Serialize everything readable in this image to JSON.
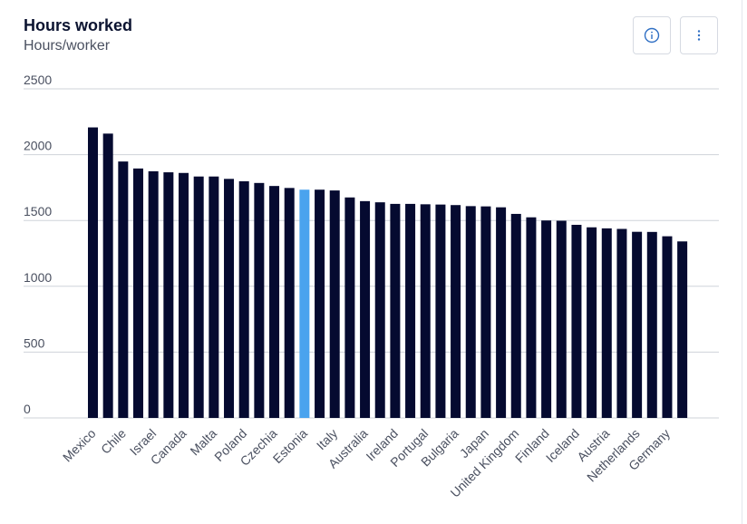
{
  "header": {
    "title": "Hours worked",
    "subtitle": "Hours/worker"
  },
  "toolbar": {
    "info_icon": "info-icon",
    "more_icon": "more-vertical-icon"
  },
  "colors": {
    "bar": "#050a30",
    "highlight": "#4aa3ee",
    "grid": "#cfd3da"
  },
  "chart_data": {
    "type": "bar",
    "yticks": [
      0,
      500,
      1000,
      1500,
      2000,
      2500
    ],
    "ylim": [
      0,
      2500
    ],
    "grid": true,
    "highlight_index": 14,
    "x_labels": [
      "Mexico",
      "Chile",
      "Israel",
      "Canada",
      "Malta",
      "Poland",
      "Czechia",
      "Estonia",
      "Italy",
      "Australia",
      "Ireland",
      "Portugal",
      "Bulgaria",
      "Japan",
      "United Kingdom",
      "Finland",
      "Iceland",
      "Austria",
      "Netherlands",
      "Germany"
    ],
    "values": [
      2207,
      2160,
      1948,
      1895,
      1874,
      1866,
      1861,
      1834,
      1834,
      1816,
      1798,
      1785,
      1762,
      1747,
      1734,
      1734,
      1728,
      1675,
      1647,
      1638,
      1626,
      1626,
      1623,
      1621,
      1617,
      1609,
      1607,
      1600,
      1550,
      1524,
      1500,
      1498,
      1467,
      1448,
      1440,
      1436,
      1414,
      1413,
      1380,
      1341
    ]
  }
}
